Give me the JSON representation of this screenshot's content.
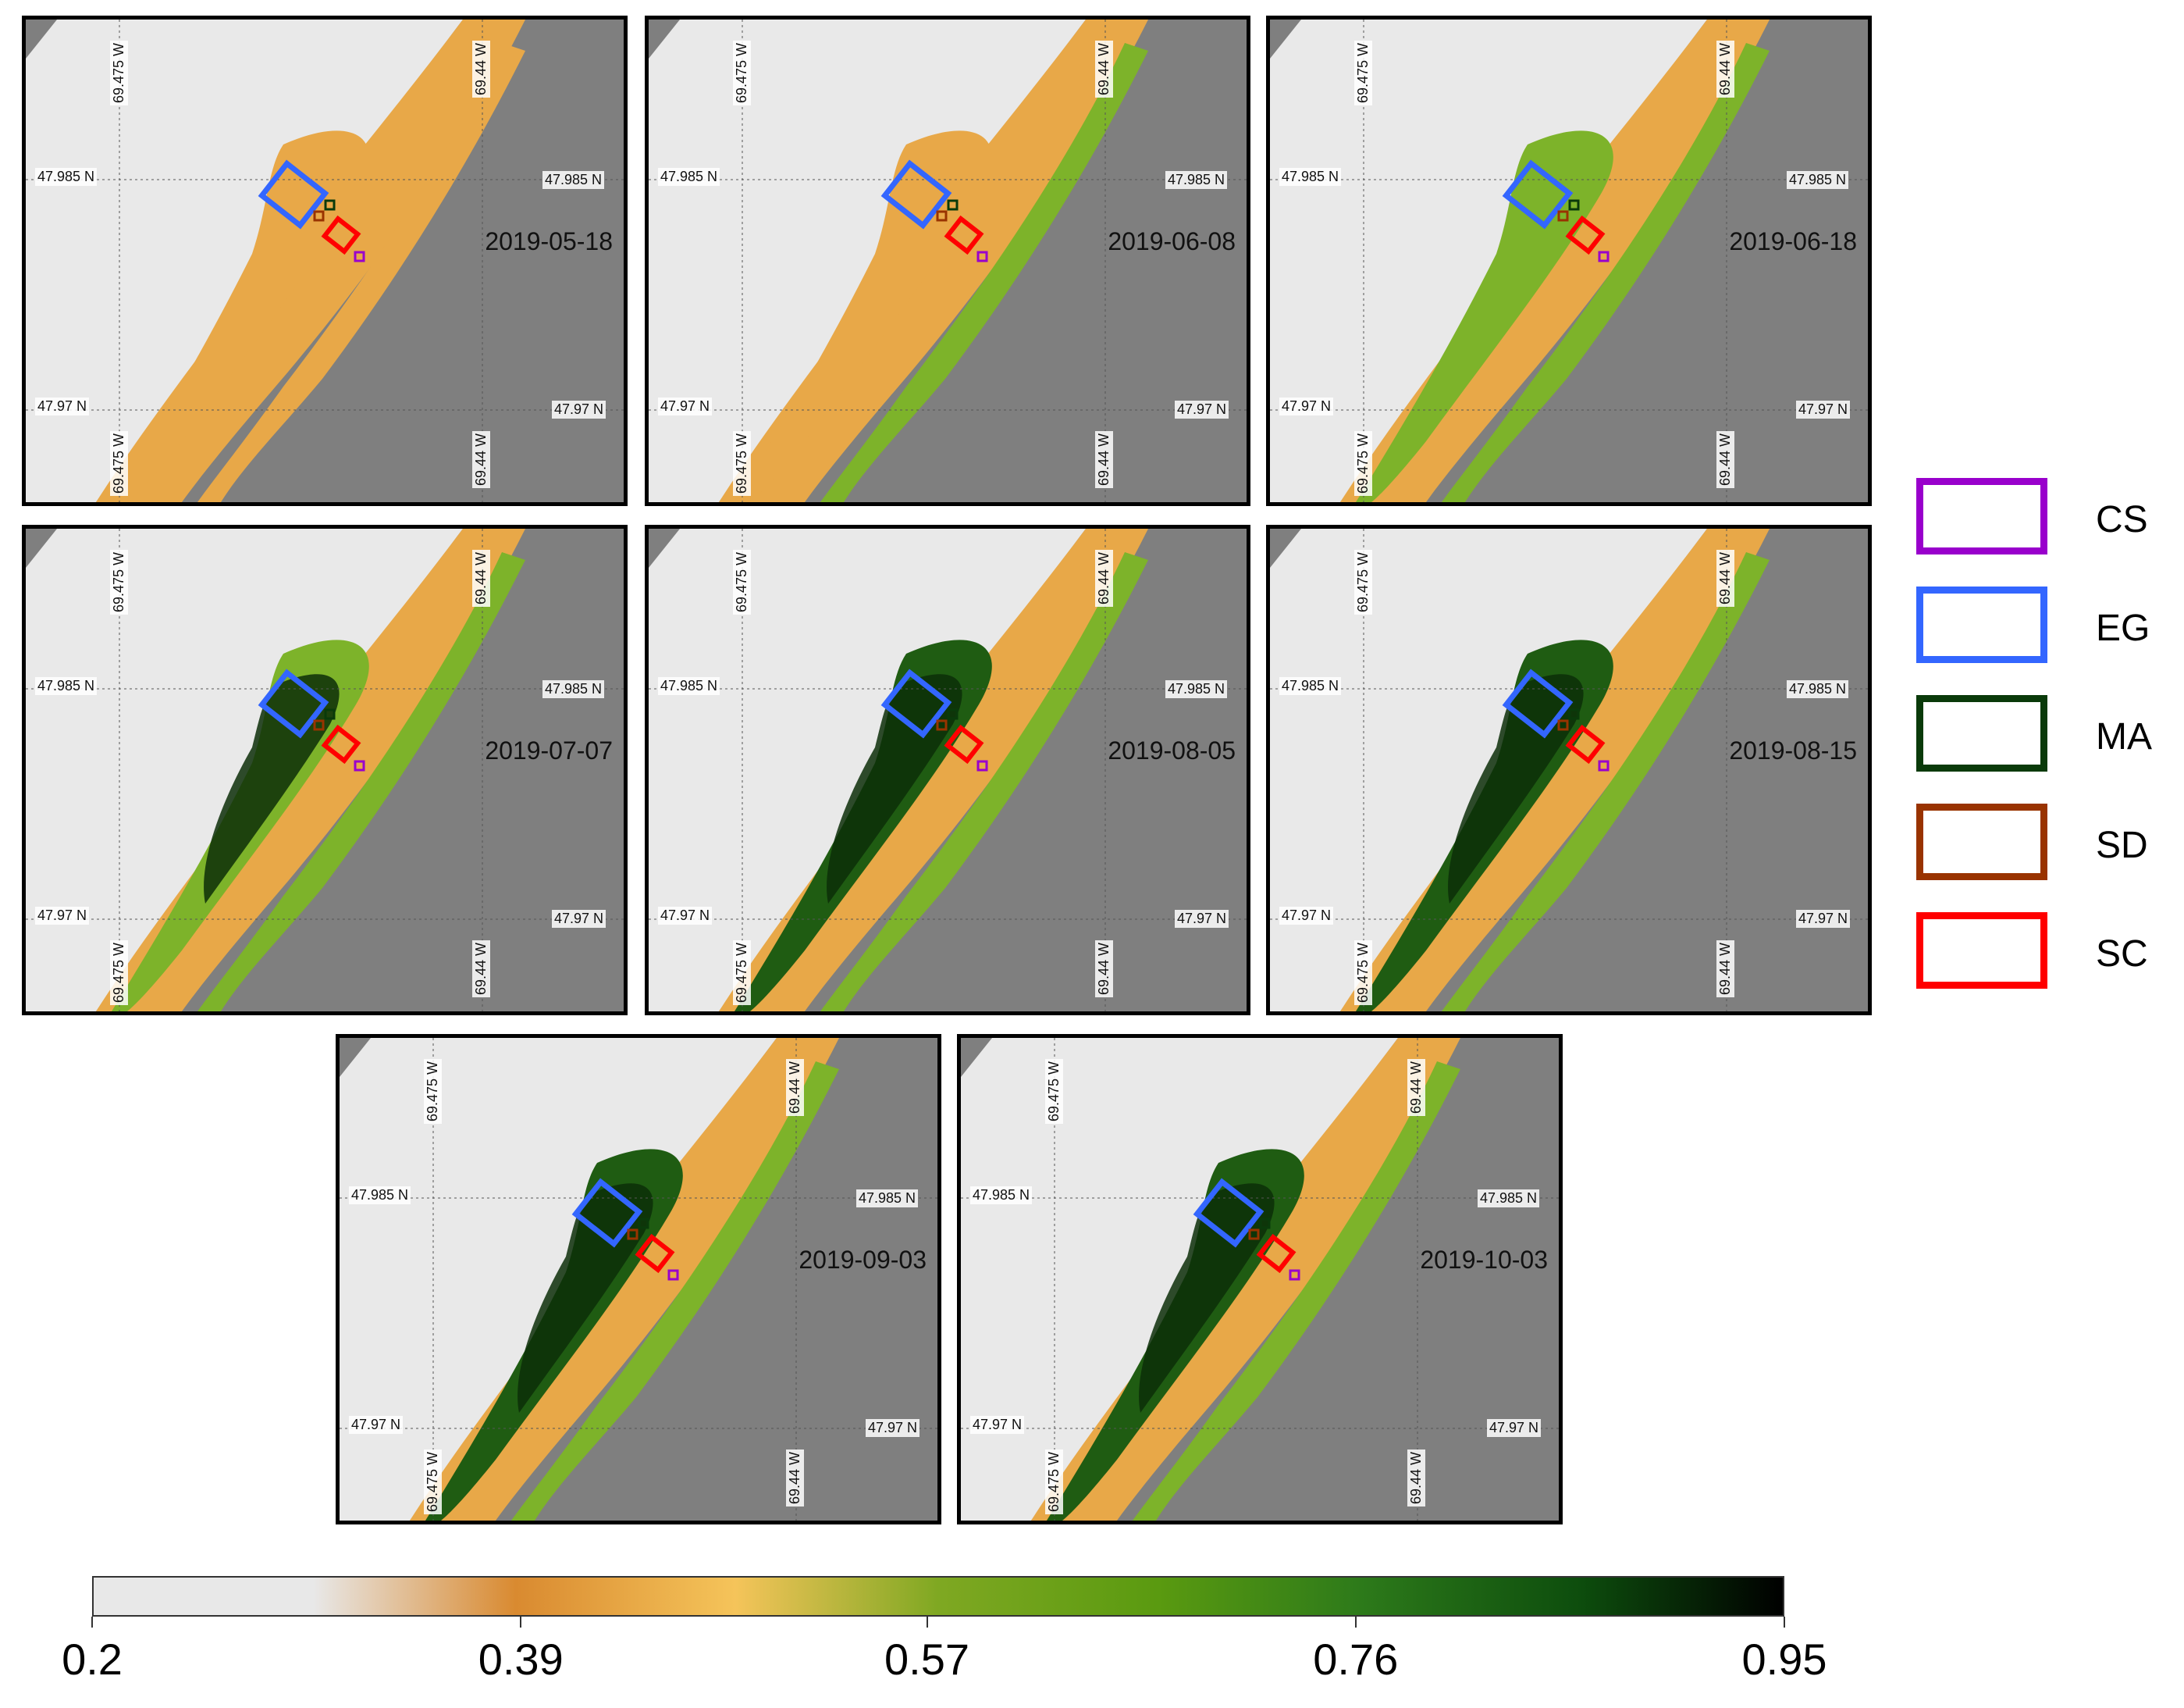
{
  "panels": [
    {
      "date": "2019-05-18"
    },
    {
      "date": "2019-06-08"
    },
    {
      "date": "2019-06-18"
    },
    {
      "date": "2019-07-07"
    },
    {
      "date": "2019-08-05"
    },
    {
      "date": "2019-08-15"
    },
    {
      "date": "2019-09-03"
    },
    {
      "date": "2019-10-03"
    }
  ],
  "coords": {
    "lon_left": "69.475 W",
    "lon_right": "69.44 W",
    "lat_top": "47.985 N",
    "lat_bottom": "47.97 N"
  },
  "legend": [
    {
      "label": "CS",
      "color": "#9900cc"
    },
    {
      "label": "EG",
      "color": "#3366ff"
    },
    {
      "label": "MA",
      "color": "#0a3a0a"
    },
    {
      "label": "SD",
      "color": "#993300"
    },
    {
      "label": "SC",
      "color": "#ff0000"
    }
  ],
  "colorbar": {
    "ticks": [
      "0.2",
      "0.39",
      "0.57",
      "0.76",
      "0.95"
    ],
    "min": 0.2,
    "max": 0.95,
    "colors": [
      "#e8e8e8",
      "#e8e8e8",
      "#d98a30",
      "#f5c45a",
      "#7fa822",
      "#5a9a10",
      "#2d7a1a",
      "#0d4d0d",
      "#000000"
    ]
  },
  "colors": {
    "land_bare": "#e9e9e9",
    "water": "#7f7f7f",
    "sand": "#e8a848",
    "green_light": "#7db32a",
    "green_dark": "#1f5c12",
    "green_darkest": "#0c2e08"
  }
}
